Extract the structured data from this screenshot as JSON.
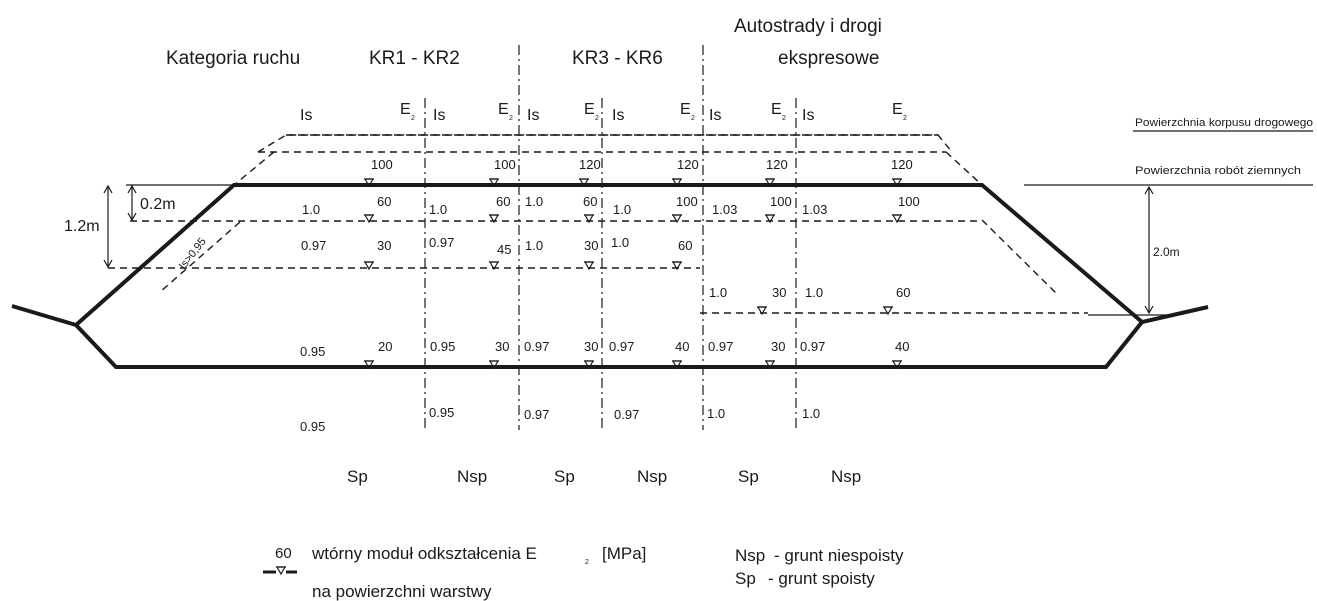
{
  "header": {
    "category_label": "Kategoria ruchu",
    "col1_title": "KR1 - KR2",
    "col2_title": "KR3 - KR6",
    "col3_title_line1": "Autostrady i drogi",
    "col3_title_line2": "ekspresowe"
  },
  "sub_headers": {
    "is": "Is",
    "e": "E",
    "sub2": "2"
  },
  "surfaces": {
    "top_label": "Powierzchnia korpusu drogowego",
    "earthworks_label": "Powierzchnia robót ziemnych"
  },
  "dimensions": {
    "d_0_2": "0.2m",
    "d_1_2": "1.2m",
    "d_2_0": "2.0m",
    "slope_note": "Is>0,95"
  },
  "columns": [
    {
      "is": [
        "1.0",
        "0.97",
        "0.95",
        "0.95"
      ],
      "e": [
        "100",
        "60",
        "30",
        "20"
      ]
    },
    {
      "is": [
        "1.0",
        "0.97",
        "0.95",
        "0.95"
      ],
      "e": [
        "100",
        "60",
        "45",
        "30"
      ]
    },
    {
      "is": [
        "1.0",
        "1.0",
        "0.97",
        "0.97"
      ],
      "e": [
        "120",
        "60",
        "30",
        "30"
      ]
    },
    {
      "is": [
        "1.0",
        "1.0",
        "0.97",
        "0.97"
      ],
      "e": [
        "120",
        "100",
        "60",
        "40"
      ]
    },
    {
      "is": [
        "1.03",
        "1.0",
        "0.97",
        "1.0"
      ],
      "e": [
        "120",
        "100",
        "30",
        "30"
      ]
    },
    {
      "is": [
        "1.03",
        "1.0",
        "0.97",
        "1.0"
      ],
      "e": [
        "120",
        "100",
        "60",
        "40"
      ]
    }
  ],
  "soil_types": [
    "Sp",
    "Nsp",
    "Sp",
    "Nsp",
    "Sp",
    "Nsp"
  ],
  "legend": {
    "symbol_value": "60",
    "modulus_line1": "wtórny moduł odkształcenia E",
    "modulus_sub": "2",
    "modulus_unit": "[MPa]",
    "modulus_line2": "na powierzchni warstwy",
    "nsp_def_code": "Nsp",
    "nsp_def_text": "- grunt niespoisty",
    "sp_def_code": "Sp",
    "sp_def_text": "- grunt spoisty"
  }
}
